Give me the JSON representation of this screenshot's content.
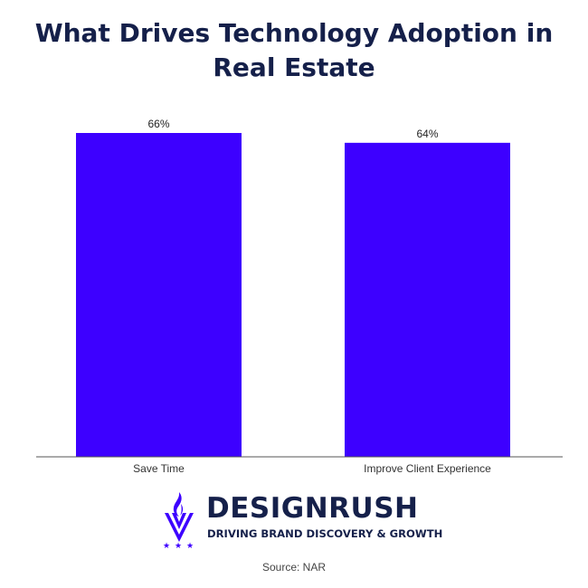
{
  "chart_data": {
    "type": "bar",
    "title": "What Drives Technology Adoption in Real Estate",
    "categories": [
      "Save Time",
      "Improve Client Experience"
    ],
    "values": [
      66,
      64
    ],
    "value_labels": [
      "66%",
      "64%"
    ],
    "ylim": [
      0,
      66
    ],
    "grid": false,
    "legend": "none",
    "bar_color": "#3d00ff"
  },
  "brand": {
    "name": "DESIGNRUSH",
    "tagline": "DRIVING BRAND DISCOVERY & GROWTH",
    "mark_color": "#3d00ff",
    "text_color": "#15204a"
  },
  "source": "Source: NAR"
}
